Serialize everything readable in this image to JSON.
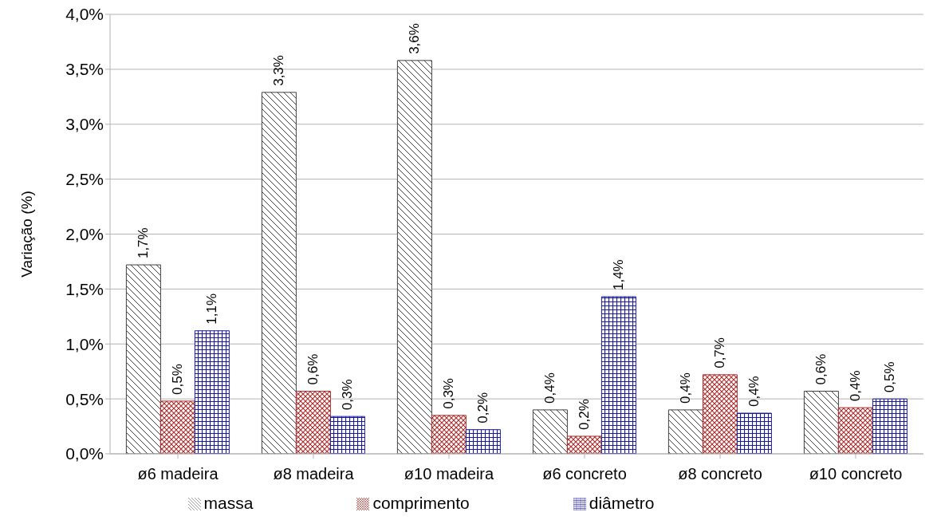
{
  "chart_data": {
    "type": "bar",
    "ylabel": "Variação (%)",
    "categories": [
      "ø6 madeira",
      "ø8 madeira",
      "ø10 madeira",
      "ø6 concreto",
      "ø8 concreto",
      "ø10 concreto"
    ],
    "series": [
      {
        "name": "massa",
        "color": "#404040",
        "values": [
          1.72,
          3.29,
          3.58,
          0.4,
          0.4,
          0.57
        ],
        "value_labels": [
          "1,7%",
          "3,3%",
          "3,6%",
          "0,4%",
          "0,4%",
          "0,6%"
        ]
      },
      {
        "name": "comprimento",
        "color": "#a83232",
        "values": [
          0.48,
          0.57,
          0.35,
          0.16,
          0.72,
          0.42
        ],
        "value_labels": [
          "0,5%",
          "0,6%",
          "0,3%",
          "0,2%",
          "0,7%",
          "0,4%"
        ]
      },
      {
        "name": "diâmetro",
        "color": "#1a1a9c",
        "values": [
          1.12,
          0.34,
          0.22,
          1.43,
          0.37,
          0.5
        ],
        "value_labels": [
          "1,1%",
          "0,3%",
          "0,2%",
          "1,4%",
          "0,4%",
          "0,5%"
        ]
      }
    ],
    "ylim": [
      0,
      4
    ],
    "yticks": [
      {
        "value": 0,
        "label": "0,0%"
      },
      {
        "value": 0.5,
        "label": "0,5%"
      },
      {
        "value": 1,
        "label": "1,0%"
      },
      {
        "value": 1.5,
        "label": "1,5%"
      },
      {
        "value": 2,
        "label": "2,0%"
      },
      {
        "value": 2.5,
        "label": "2,5%"
      },
      {
        "value": 3,
        "label": "3,0%"
      },
      {
        "value": 3.5,
        "label": "3,5%"
      },
      {
        "value": 4,
        "label": "4,0%"
      }
    ],
    "grid": "y",
    "legend": "bottom"
  }
}
